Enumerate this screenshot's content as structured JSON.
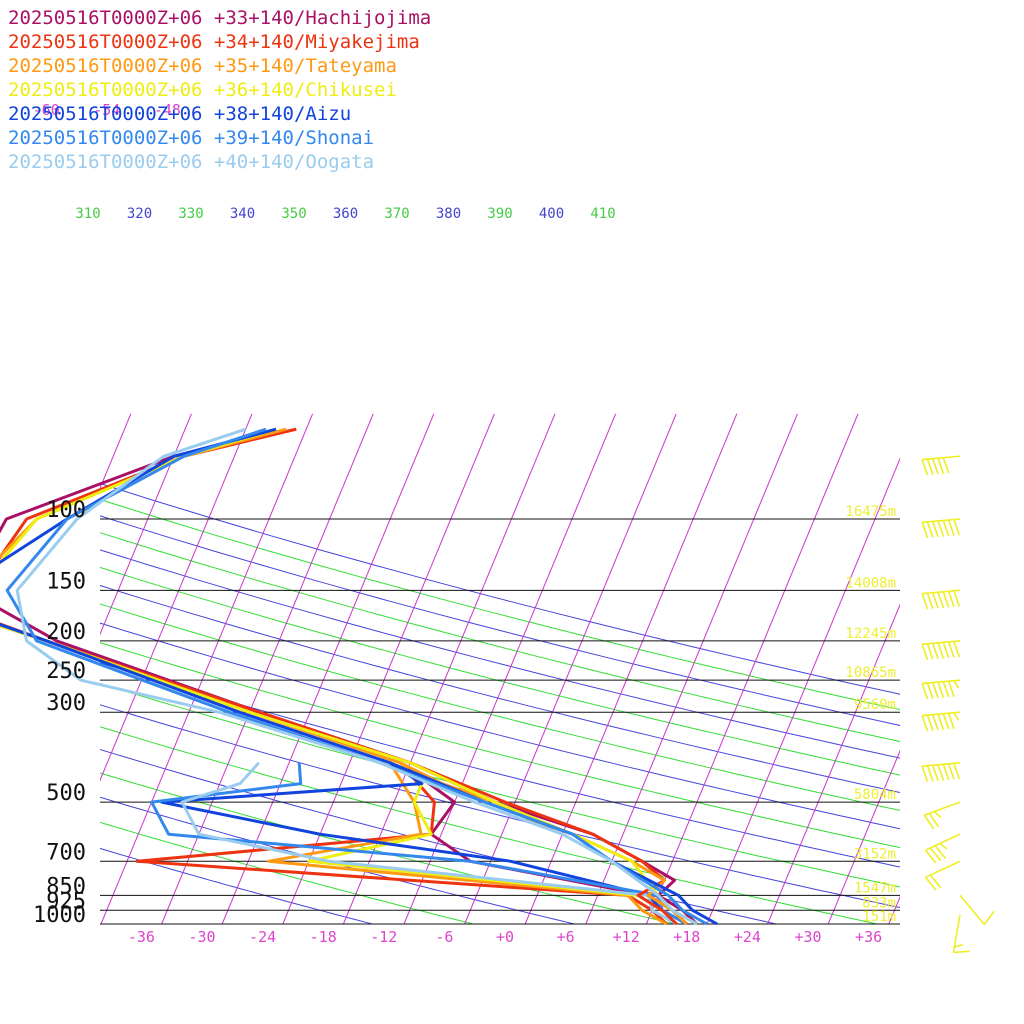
{
  "chart_data": {
    "type": "line",
    "title": "",
    "xlabel": "",
    "ylabel": "",
    "pressure_levels": [
      100,
      150,
      200,
      250,
      300,
      500,
      700,
      850,
      925,
      1000
    ],
    "temperature_ticks": [
      "-36",
      "-30",
      "-24",
      "-18",
      "-12",
      "-6",
      "+0",
      "+6",
      "+12",
      "+18",
      "+24",
      "+30",
      "+36"
    ],
    "top_isotherm_labels": [
      "-66",
      "-60",
      "-54",
      "-48"
    ],
    "theta_labels": [
      {
        "text": "310",
        "color": "#44cc44"
      },
      {
        "text": "320",
        "color": "#4444cc"
      },
      {
        "text": "330",
        "color": "#44cc44"
      },
      {
        "text": "340",
        "color": "#4444cc"
      },
      {
        "text": "350",
        "color": "#44cc44"
      },
      {
        "text": "360",
        "color": "#4444cc"
      },
      {
        "text": "370",
        "color": "#44cc44"
      },
      {
        "text": "380",
        "color": "#4444cc"
      },
      {
        "text": "390",
        "color": "#44cc44"
      },
      {
        "text": "400",
        "color": "#4444cc"
      },
      {
        "text": "410",
        "color": "#44cc44"
      }
    ],
    "heights": [
      {
        "p": 100,
        "text": "16475m"
      },
      {
        "p": 150,
        "text": "14008m"
      },
      {
        "p": 200,
        "text": "12245m"
      },
      {
        "p": 250,
        "text": "10865m"
      },
      {
        "p": 300,
        "text": "9560m"
      },
      {
        "p": 500,
        "text": "5804m"
      },
      {
        "p": 700,
        "text": "3152m"
      },
      {
        "p": 850,
        "text": "1547m"
      },
      {
        "p": 925,
        "text": "833m"
      },
      {
        "p": 1000,
        "text": "151m"
      }
    ],
    "series": [
      {
        "name": "20250516T0000Z+06 +33+140/Hachijojima",
        "color": "#aa1166",
        "temperature": [
          [
            60,
            -41
          ],
          [
            70,
            -52
          ],
          [
            100,
            -66
          ],
          [
            150,
            -67
          ],
          [
            200,
            -56
          ],
          [
            300,
            -33
          ],
          [
            400,
            -16
          ],
          [
            500,
            -6
          ],
          [
            600,
            5
          ],
          [
            700,
            11
          ],
          [
            780,
            15
          ],
          [
            850,
            14
          ],
          [
            925,
            17
          ],
          [
            1000,
            19
          ]
        ],
        "dewpoint": [
          [
            400,
            -17
          ],
          [
            500,
            -10
          ],
          [
            600,
            -11
          ],
          [
            700,
            -6
          ],
          [
            850,
            13
          ],
          [
            925,
            16
          ],
          [
            1000,
            18
          ]
        ]
      },
      {
        "name": "20250516T0000Z+06 +34+140/Miyakejima",
        "color": "#ee3311",
        "temperature": [
          [
            60,
            -41
          ],
          [
            70,
            -51
          ],
          [
            100,
            -64
          ],
          [
            150,
            -66
          ],
          [
            170,
            -66
          ],
          [
            200,
            -57
          ],
          [
            300,
            -33
          ],
          [
            400,
            -16
          ],
          [
            500,
            -5
          ],
          [
            600,
            5
          ],
          [
            700,
            11
          ],
          [
            780,
            14
          ],
          [
            850,
            12
          ],
          [
            925,
            15
          ],
          [
            1000,
            17
          ]
        ],
        "dewpoint": [
          [
            400,
            -17
          ],
          [
            500,
            -12
          ],
          [
            600,
            -11
          ],
          [
            700,
            -39
          ],
          [
            850,
            11
          ],
          [
            925,
            14
          ],
          [
            1000,
            16
          ]
        ]
      },
      {
        "name": "20250516T0000Z+06 +35+140/Tateyama",
        "color": "#ff9911",
        "temperature": [
          [
            60,
            -42
          ],
          [
            70,
            -51
          ],
          [
            100,
            -63
          ],
          [
            150,
            -67
          ],
          [
            170,
            -67
          ],
          [
            200,
            -57
          ],
          [
            300,
            -34
          ],
          [
            400,
            -17
          ],
          [
            450,
            -12
          ],
          [
            500,
            -6
          ],
          [
            550,
            -2
          ],
          [
            600,
            3
          ],
          [
            700,
            10
          ],
          [
            780,
            14
          ],
          [
            850,
            13
          ],
          [
            925,
            16
          ],
          [
            1000,
            18
          ]
        ],
        "dewpoint": [
          [
            400,
            -18
          ],
          [
            500,
            -14
          ],
          [
            600,
            -12
          ],
          [
            700,
            -26
          ],
          [
            850,
            11
          ],
          [
            925,
            13
          ],
          [
            1000,
            16
          ]
        ]
      },
      {
        "name": "20250516T0000Z+06 +36+140/Chikusei",
        "color": "#eeee11",
        "temperature": [
          [
            60,
            -43
          ],
          [
            70,
            -51
          ],
          [
            100,
            -63
          ],
          [
            150,
            -66
          ],
          [
            170,
            -67
          ],
          [
            200,
            -57
          ],
          [
            300,
            -34
          ],
          [
            400,
            -16
          ],
          [
            500,
            -6
          ],
          [
            600,
            3
          ],
          [
            700,
            10
          ],
          [
            850,
            14
          ],
          [
            925,
            16
          ],
          [
            1000,
            19
          ]
        ],
        "dewpoint": [
          [
            400,
            -17
          ],
          [
            450,
            -14
          ],
          [
            500,
            -14
          ],
          [
            600,
            -11
          ],
          [
            700,
            -22
          ],
          [
            850,
            12
          ],
          [
            925,
            15
          ],
          [
            1000,
            18
          ]
        ]
      },
      {
        "name": "20250516T0000Z+06 +38+140/Aizu",
        "color": "#1144dd",
        "temperature": [
          [
            60,
            -43
          ],
          [
            70,
            -52
          ],
          [
            100,
            -60
          ],
          [
            150,
            -68
          ],
          [
            165,
            -68
          ],
          [
            200,
            -57
          ],
          [
            300,
            -35
          ],
          [
            400,
            -18
          ],
          [
            500,
            -7
          ],
          [
            600,
            3
          ],
          [
            700,
            8
          ],
          [
            850,
            16
          ],
          [
            925,
            18
          ],
          [
            1000,
            21
          ]
        ],
        "dewpoint": [
          [
            400,
            -18
          ],
          [
            450,
            -14
          ],
          [
            500,
            -39
          ],
          [
            600,
            -22
          ],
          [
            700,
            -2
          ],
          [
            850,
            13
          ],
          [
            925,
            15
          ],
          [
            1000,
            18
          ]
        ]
      },
      {
        "name": "20250516T0000Z+06 +39+140/Shonai",
        "color": "#3388ee",
        "temperature": [
          [
            60,
            -44
          ],
          [
            70,
            -51
          ],
          [
            100,
            -60
          ],
          [
            150,
            -63
          ],
          [
            200,
            -58
          ],
          [
            300,
            -36
          ],
          [
            400,
            -19
          ],
          [
            500,
            -7
          ],
          [
            600,
            3
          ],
          [
            700,
            8
          ],
          [
            850,
            15
          ],
          [
            925,
            17
          ],
          [
            1000,
            20
          ]
        ],
        "dewpoint": [
          [
            400,
            -27
          ],
          [
            450,
            -26
          ],
          [
            500,
            -40
          ],
          [
            600,
            -37
          ],
          [
            700,
            -6
          ],
          [
            850,
            14
          ],
          [
            925,
            15
          ],
          [
            1000,
            18
          ]
        ]
      },
      {
        "name": "20250516T0000Z+06 +40+140/Oogata",
        "color": "#99ccee",
        "temperature": [
          [
            60,
            -46
          ],
          [
            70,
            -53
          ],
          [
            100,
            -59
          ],
          [
            150,
            -62
          ],
          [
            200,
            -59
          ],
          [
            250,
            -52
          ],
          [
            300,
            -37
          ],
          [
            400,
            -19
          ],
          [
            500,
            -8
          ],
          [
            600,
            2
          ],
          [
            700,
            8
          ],
          [
            850,
            14
          ],
          [
            925,
            16
          ],
          [
            1000,
            19
          ]
        ],
        "dewpoint": [
          [
            400,
            -31
          ],
          [
            450,
            -32
          ],
          [
            500,
            -37
          ],
          [
            600,
            -34
          ],
          [
            700,
            -20
          ],
          [
            850,
            13
          ],
          [
            925,
            14
          ],
          [
            1000,
            17
          ]
        ]
      }
    ],
    "wind_barbs": [
      {
        "p": 70,
        "direction": 265,
        "speed": 50
      },
      {
        "p": 100,
        "direction": 265,
        "speed": 70
      },
      {
        "p": 150,
        "direction": 265,
        "speed": 70
      },
      {
        "p": 200,
        "direction": 265,
        "speed": 70
      },
      {
        "p": 250,
        "direction": 265,
        "speed": 65
      },
      {
        "p": 300,
        "direction": 265,
        "speed": 65
      },
      {
        "p": 400,
        "direction": 265,
        "speed": 75
      },
      {
        "p": 500,
        "direction": 250,
        "speed": 25
      },
      {
        "p": 600,
        "direction": 245,
        "speed": 35
      },
      {
        "p": 700,
        "direction": 245,
        "speed": 20
      },
      {
        "p": 850,
        "direction": 140,
        "speed": 10
      },
      {
        "p": 950,
        "direction": 190,
        "speed": 15
      }
    ]
  }
}
